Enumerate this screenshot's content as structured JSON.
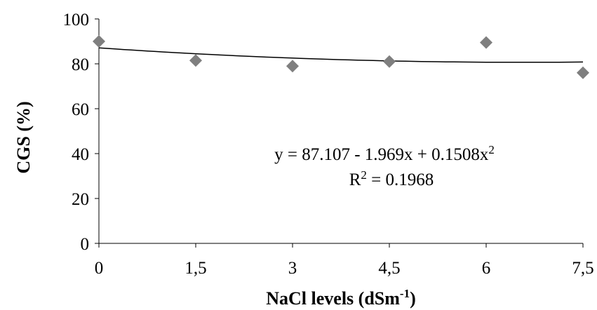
{
  "chart_data": {
    "type": "scatter",
    "x": [
      0,
      1.5,
      3,
      4.5,
      6,
      7.5
    ],
    "y": [
      90,
      81.5,
      79,
      81,
      89.5,
      76
    ],
    "x_tick_labels": [
      "0",
      "1,5",
      "3",
      "4,5",
      "6",
      "7,5"
    ],
    "y_tick_labels": [
      "0",
      "20",
      "40",
      "60",
      "80",
      "100"
    ],
    "xlim": [
      0,
      7.5
    ],
    "ylim": [
      0,
      100
    ],
    "xlabel_main": "NaCl levels (dSm",
    "xlabel_sup": "-1",
    "xlabel_end": ")",
    "ylabel": "CGS (%)",
    "grid": false,
    "marker_color": "#7f7f7f",
    "trendline": {
      "type": "polynomial",
      "coefficients": [
        87.107,
        -1.969,
        0.1508
      ],
      "color": "#000000",
      "equation_main": "y = 87.107  - 1.969x + 0.1508x",
      "equation_sup": "2",
      "r2_label": "R",
      "r2_sup": "2",
      "r2_value": " = 0.1968"
    }
  }
}
